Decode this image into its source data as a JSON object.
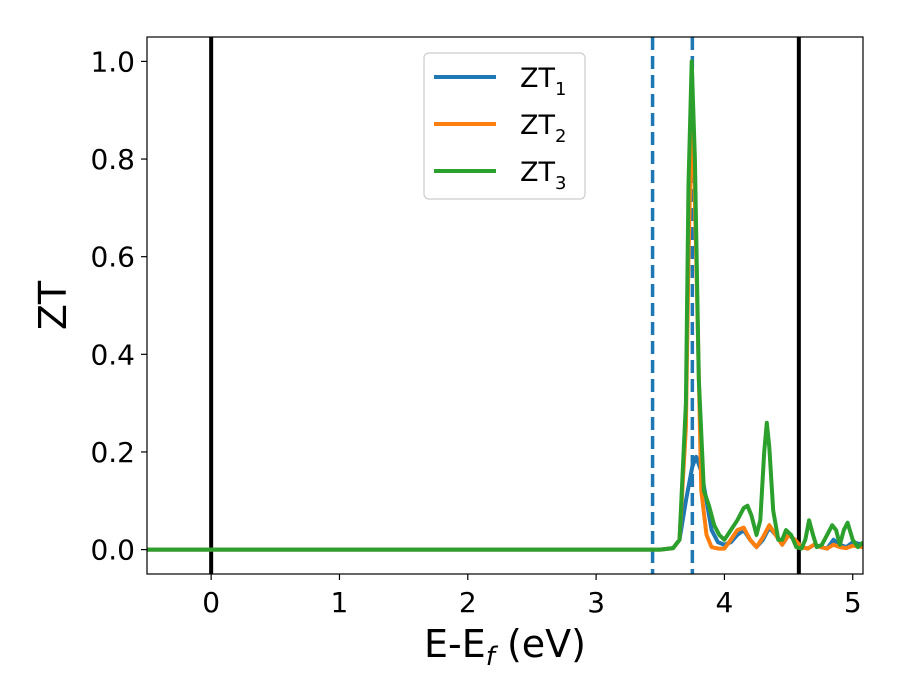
{
  "chart_data": {
    "type": "line",
    "xlabel": "E-E",
    "xlabel_sub": "f",
    "xlabel_unit": " (eV)",
    "ylabel": "ZT",
    "xlim": [
      -0.5,
      5.08
    ],
    "ylim": [
      -0.05,
      1.05
    ],
    "xticks": [
      0,
      1,
      2,
      3,
      4,
      5
    ],
    "xtick_labels": [
      "0",
      "1",
      "2",
      "3",
      "4",
      "5"
    ],
    "yticks": [
      0.0,
      0.2,
      0.4,
      0.6,
      0.8,
      1.0
    ],
    "ytick_labels": [
      "0.0",
      "0.2",
      "0.4",
      "0.6",
      "0.8",
      "1.0"
    ],
    "legend_position": "upper-center",
    "vertical_lines": [
      {
        "x": 0.0,
        "style": "solid",
        "color": "#000000"
      },
      {
        "x": 4.58,
        "style": "solid",
        "color": "#000000"
      },
      {
        "x": 3.44,
        "style": "dashed",
        "color": "#1f77b4"
      },
      {
        "x": 3.75,
        "style": "dashed",
        "color": "#1f77b4"
      }
    ],
    "series": [
      {
        "name": "ZT",
        "name_sub": "1",
        "color": "#1f77b4",
        "x": [
          -0.5,
          3.5,
          3.6,
          3.65,
          3.7,
          3.75,
          3.78,
          3.82,
          3.86,
          3.9,
          3.95,
          4.0,
          4.05,
          4.1,
          4.15,
          4.2,
          4.25,
          4.3,
          4.35,
          4.4,
          4.45,
          4.5,
          4.55,
          4.6,
          4.65,
          4.7,
          4.75,
          4.8,
          4.85,
          4.9,
          4.95,
          5.0,
          5.08
        ],
        "y": [
          0.0,
          0.0,
          0.003,
          0.02,
          0.1,
          0.17,
          0.19,
          0.16,
          0.1,
          0.04,
          0.015,
          0.01,
          0.015,
          0.03,
          0.04,
          0.02,
          0.005,
          0.02,
          0.045,
          0.03,
          0.01,
          0.03,
          0.02,
          0.005,
          0.002,
          0.01,
          0.005,
          0.002,
          0.02,
          0.01,
          0.005,
          0.015,
          0.01
        ]
      },
      {
        "name": "ZT",
        "name_sub": "2",
        "color": "#ff7f0e",
        "x": [
          -0.5,
          3.5,
          3.6,
          3.65,
          3.7,
          3.72,
          3.75,
          3.78,
          3.82,
          3.86,
          3.9,
          3.95,
          4.0,
          4.05,
          4.1,
          4.15,
          4.2,
          4.25,
          4.3,
          4.35,
          4.4,
          4.45,
          4.5,
          4.55,
          4.6,
          4.65,
          4.7,
          4.75,
          4.8,
          4.85,
          4.9,
          4.95,
          5.0,
          5.08
        ],
        "y": [
          0.0,
          0.0,
          0.003,
          0.02,
          0.25,
          0.6,
          0.95,
          0.6,
          0.12,
          0.03,
          0.005,
          0.002,
          0.002,
          0.02,
          0.04,
          0.045,
          0.02,
          0.005,
          0.025,
          0.05,
          0.03,
          0.01,
          0.03,
          0.02,
          0.005,
          0.002,
          0.01,
          0.005,
          0.002,
          0.01,
          0.005,
          0.003,
          0.008,
          0.005
        ]
      },
      {
        "name": "ZT",
        "name_sub": "3",
        "color": "#2ca02c",
        "x": [
          -0.5,
          3.5,
          3.6,
          3.65,
          3.7,
          3.72,
          3.745,
          3.77,
          3.8,
          3.84,
          3.88,
          3.92,
          3.96,
          4.0,
          4.05,
          4.1,
          4.15,
          4.18,
          4.21,
          4.25,
          4.28,
          4.31,
          4.33,
          4.35,
          4.38,
          4.42,
          4.45,
          4.48,
          4.52,
          4.56,
          4.6,
          4.63,
          4.66,
          4.69,
          4.72,
          4.76,
          4.8,
          4.84,
          4.87,
          4.9,
          4.93,
          4.96,
          5.0,
          5.04,
          5.08
        ],
        "y": [
          0.0,
          0.0,
          0.003,
          0.02,
          0.3,
          0.75,
          1.0,
          0.8,
          0.35,
          0.12,
          0.09,
          0.05,
          0.03,
          0.02,
          0.04,
          0.06,
          0.085,
          0.09,
          0.07,
          0.03,
          0.06,
          0.2,
          0.26,
          0.21,
          0.08,
          0.02,
          0.02,
          0.04,
          0.03,
          0.005,
          0.002,
          0.02,
          0.06,
          0.03,
          0.005,
          0.01,
          0.03,
          0.05,
          0.04,
          0.01,
          0.04,
          0.055,
          0.02,
          0.005,
          0.015
        ]
      }
    ]
  }
}
